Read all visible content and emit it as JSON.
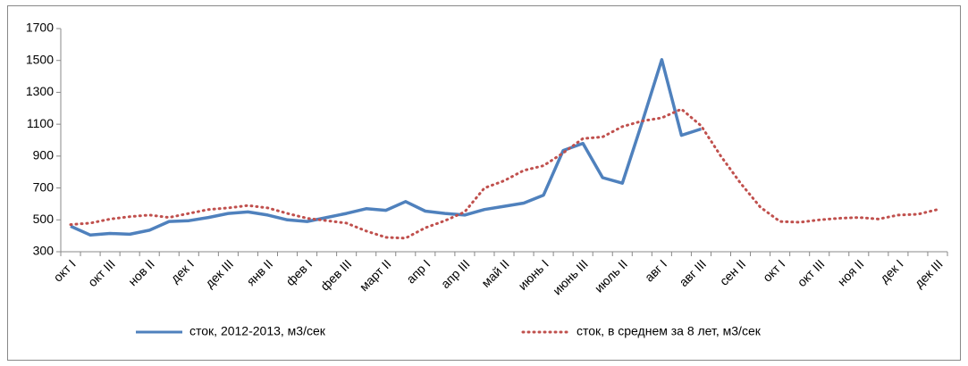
{
  "chart_data": {
    "type": "line",
    "categories": [
      "окт I",
      null,
      "окт III",
      null,
      "нов II",
      null,
      "дек I",
      null,
      "дек III",
      null,
      "янв II",
      null,
      "фев I",
      null,
      "фев III",
      null,
      "март II",
      null,
      "апр I",
      null,
      "апр III",
      null,
      "май II",
      null,
      "июнь I",
      null,
      "июнь III",
      null,
      "июль II",
      null,
      "авг I",
      null,
      "авг III",
      null,
      "сен II",
      null,
      "окт I",
      null,
      "окт III",
      null,
      "ноя II",
      null,
      "дек I",
      null,
      "дек III"
    ],
    "series": [
      {
        "name": "сток, 2012-2013, м3/сек",
        "color": "#4f81bd",
        "style": "solid",
        "values": [
          460,
          405,
          415,
          410,
          435,
          490,
          495,
          515,
          540,
          550,
          530,
          500,
          490,
          515,
          540,
          570,
          560,
          615,
          555,
          540,
          530,
          565,
          585,
          605,
          655,
          935,
          980,
          765,
          730,
          1110,
          1505,
          1030,
          1070,
          null,
          null,
          null,
          null,
          null,
          null,
          null,
          null,
          null,
          null,
          null,
          null
        ]
      },
      {
        "name": "сток, в среднем за 8 лет, м3/сек",
        "color": "#c0504d",
        "style": "dotted",
        "values": [
          470,
          480,
          505,
          520,
          530,
          515,
          540,
          565,
          575,
          590,
          575,
          540,
          510,
          495,
          480,
          430,
          390,
          385,
          450,
          495,
          550,
          700,
          745,
          810,
          840,
          920,
          1010,
          1020,
          1085,
          1120,
          1140,
          1195,
          1090,
          900,
          730,
          580,
          490,
          485,
          500,
          510,
          515,
          505,
          530,
          535,
          565
        ]
      }
    ],
    "ylim": [
      300,
      1700
    ],
    "yticks": [
      300,
      500,
      700,
      900,
      1100,
      1300,
      1500,
      1700
    ],
    "legend": "bottom"
  }
}
